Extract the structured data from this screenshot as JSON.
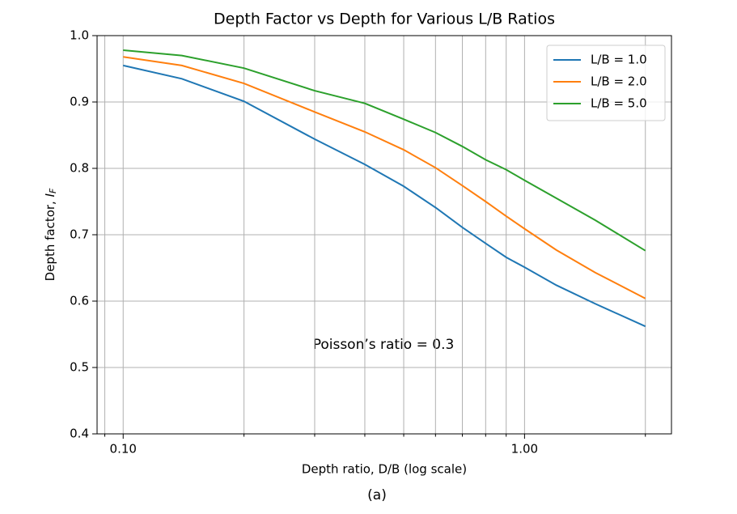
{
  "chart_data": {
    "type": "line",
    "title": "Depth Factor vs Depth for Various L/B Ratios",
    "xlabel": "Depth ratio, D/B (log scale)",
    "ylabel": "Depth factor, ",
    "ylabel_symbol": "I",
    "ylabel_subscript": "F",
    "annotation": "Poisson’s ratio = 0.3",
    "caption": "(a)",
    "xscale": "log",
    "grid": true,
    "legend": "upper right",
    "x": [
      0.1,
      0.14,
      0.2,
      0.3,
      0.4,
      0.5,
      0.6,
      0.7,
      0.8,
      0.9,
      1.0,
      1.2,
      1.5,
      2.0
    ],
    "series": [
      {
        "name": "L/B = 1.0",
        "color": "#1f77b4",
        "values": [
          0.955,
          0.935,
          0.901,
          0.844,
          0.806,
          0.773,
          0.741,
          0.711,
          0.687,
          0.666,
          0.651,
          0.624,
          0.596,
          0.562
        ]
      },
      {
        "name": "L/B = 2.0",
        "color": "#ff7f0e",
        "values": [
          0.968,
          0.955,
          0.928,
          0.885,
          0.855,
          0.828,
          0.801,
          0.774,
          0.75,
          0.728,
          0.709,
          0.677,
          0.643,
          0.604
        ]
      },
      {
        "name": "L/B = 5.0",
        "color": "#2ca02c",
        "values": [
          0.978,
          0.97,
          0.951,
          0.917,
          0.898,
          0.874,
          0.854,
          0.833,
          0.813,
          0.798,
          0.782,
          0.755,
          0.722,
          0.676
        ]
      }
    ],
    "xlim": [
      0.0861,
      2.323
    ],
    "xticks": [
      {
        "value": 0.1,
        "label": "0.10"
      },
      {
        "value": 1,
        "label": "1.00"
      }
    ],
    "xminorticks": [
      0.09,
      0.2,
      0.3,
      0.4,
      0.5,
      0.6,
      0.7,
      0.8,
      0.9,
      2
    ],
    "ylim": [
      0.4,
      1.0
    ],
    "yticks": [
      0.4,
      0.5,
      0.6,
      0.7,
      0.8,
      0.9,
      {
        "value": 1.0,
        "label": "1.0"
      }
    ]
  }
}
